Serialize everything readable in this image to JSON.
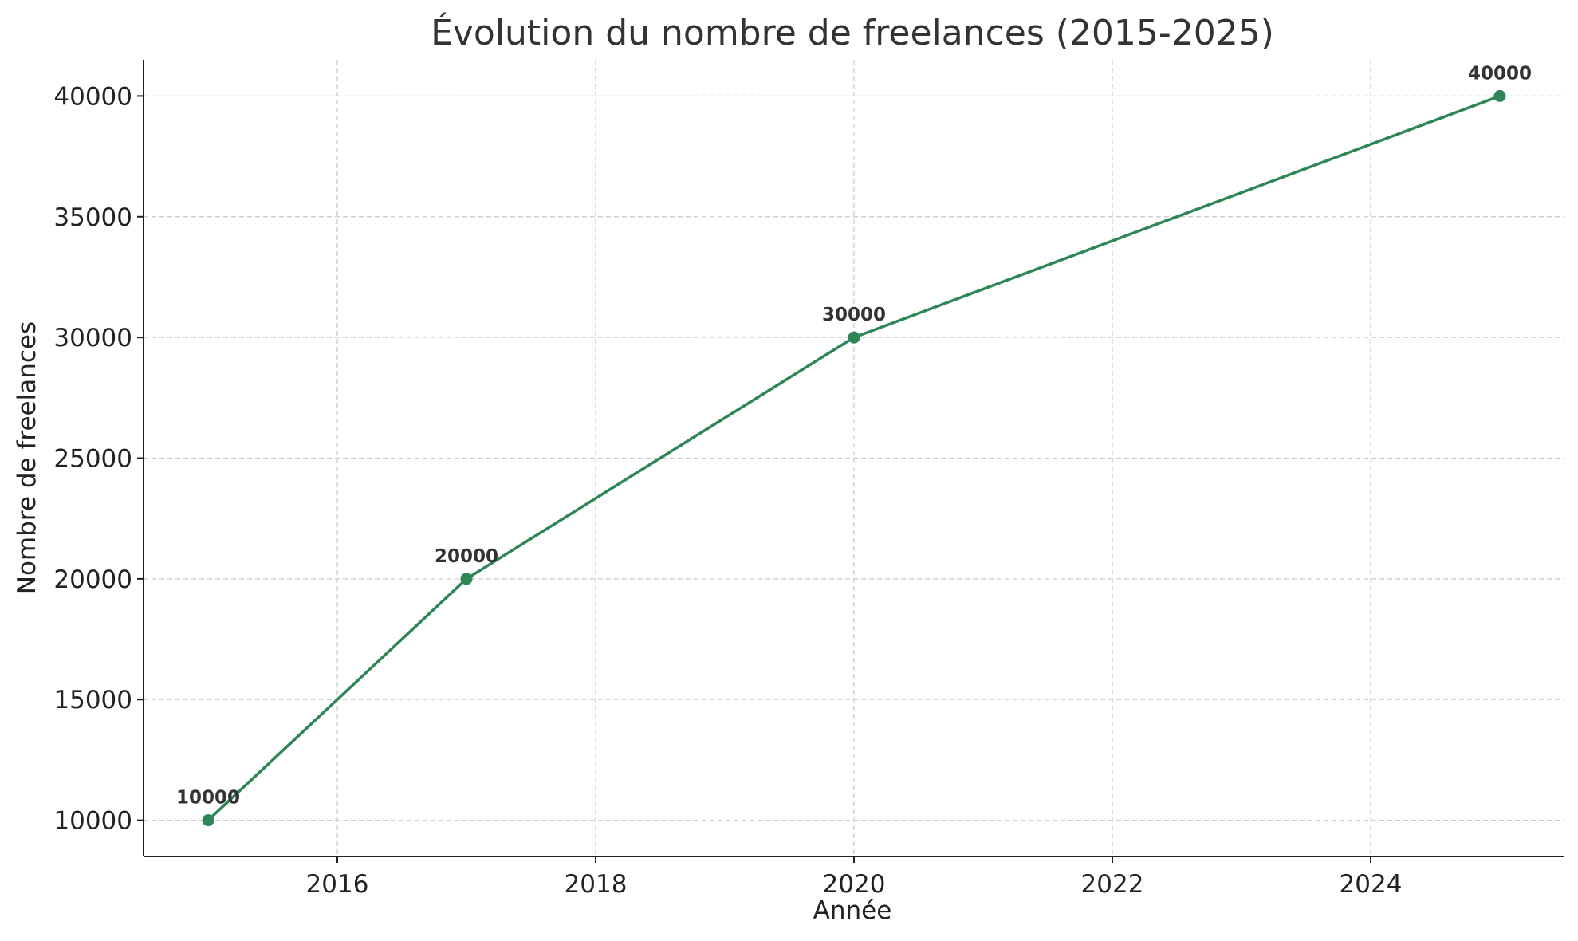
{
  "chart_data": {
    "type": "line",
    "title": "Évolution du nombre de freelances (2015-2025)",
    "xlabel": "Année",
    "ylabel": "Nombre de freelances",
    "x": [
      2015,
      2017,
      2020,
      2025
    ],
    "series": [
      {
        "values": [
          10000,
          20000,
          30000,
          40000
        ],
        "color": "#2e8555"
      }
    ],
    "data_labels": [
      "10000",
      "20000",
      "30000",
      "40000"
    ],
    "xlim": [
      2014.5,
      2025.5
    ],
    "ylim": [
      8500,
      41500
    ],
    "xticks": [
      2016,
      2018,
      2020,
      2022,
      2024
    ],
    "yticks": [
      10000,
      15000,
      20000,
      25000,
      30000,
      35000,
      40000
    ],
    "grid": true,
    "marker": "circle"
  }
}
